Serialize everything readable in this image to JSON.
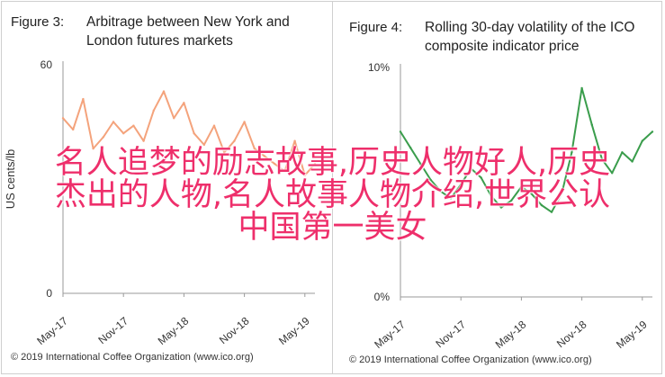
{
  "left_panel": {
    "figure_label": "Figure 3:",
    "title_lines": [
      "Arbitrage between New York and",
      "London futures markets"
    ],
    "credit": "© 2019 International Coffee Organization (www.ico.org)"
  },
  "right_panel": {
    "figure_label": "Figure 4:",
    "title_lines": [
      "Rolling 30-day volatility of the ICO",
      "composite indicator price"
    ],
    "credit": "© 2019 International Coffee Organization (www.ico.org)"
  },
  "overlay": {
    "lines": [
      "名人追梦的励志故事,历史人物好人,历史",
      "杰出的人物,名人故事人物介绍,世界公认",
      "中国第一美女"
    ],
    "color": "#ee2f6b"
  },
  "chart_data": [
    {
      "type": "line",
      "ylabel": "US cents/lb",
      "ylim": [
        0,
        60
      ],
      "yticks": [
        "60",
        "0"
      ],
      "xticks": [
        "May-17",
        "Nov-17",
        "May-18",
        "Nov-18",
        "May-19"
      ],
      "color": "#f4a37c",
      "series": [
        {
          "x": [
            "2017-05",
            "2017-06",
            "2017-07",
            "2017-08",
            "2017-09",
            "2017-10",
            "2017-11",
            "2017-12",
            "2018-01",
            "2018-02",
            "2018-03",
            "2018-04",
            "2018-05",
            "2018-06",
            "2018-07",
            "2018-08",
            "2018-09",
            "2018-10",
            "2018-11",
            "2018-12",
            "2019-01",
            "2019-02",
            "2019-03",
            "2019-04",
            "2019-05",
            "2019-06"
          ],
          "values": [
            46,
            43,
            51,
            38,
            41,
            45,
            42,
            44,
            40,
            48,
            53,
            46,
            50,
            42,
            39,
            44,
            37,
            40,
            45,
            38,
            36,
            34,
            32,
            40,
            31,
            34
          ]
        }
      ]
    },
    {
      "type": "line",
      "ylim": [
        0,
        10
      ],
      "yticks": [
        "10%",
        "0%"
      ],
      "xticks": [
        "May-17",
        "Nov-17",
        "May-18",
        "Nov-18",
        "May-19"
      ],
      "color": "#3a9d4c",
      "series": [
        {
          "x": [
            "2017-05",
            "2017-06",
            "2017-07",
            "2017-08",
            "2017-09",
            "2017-10",
            "2017-11",
            "2017-12",
            "2018-01",
            "2018-02",
            "2018-03",
            "2018-04",
            "2018-05",
            "2018-06",
            "2018-07",
            "2018-08",
            "2018-09",
            "2018-10",
            "2018-11",
            "2018-12",
            "2019-01",
            "2019-02",
            "2019-03",
            "2019-04",
            "2019-05",
            "2019-06"
          ],
          "values": [
            7.2,
            6.5,
            5.8,
            5.1,
            4.6,
            4.3,
            4.9,
            5.6,
            5.2,
            4.4,
            3.9,
            4.2,
            4.8,
            4.5,
            4.0,
            3.7,
            4.5,
            6.3,
            9.1,
            7.5,
            6.0,
            5.4,
            6.3,
            5.9,
            6.8,
            7.2
          ]
        }
      ]
    }
  ]
}
